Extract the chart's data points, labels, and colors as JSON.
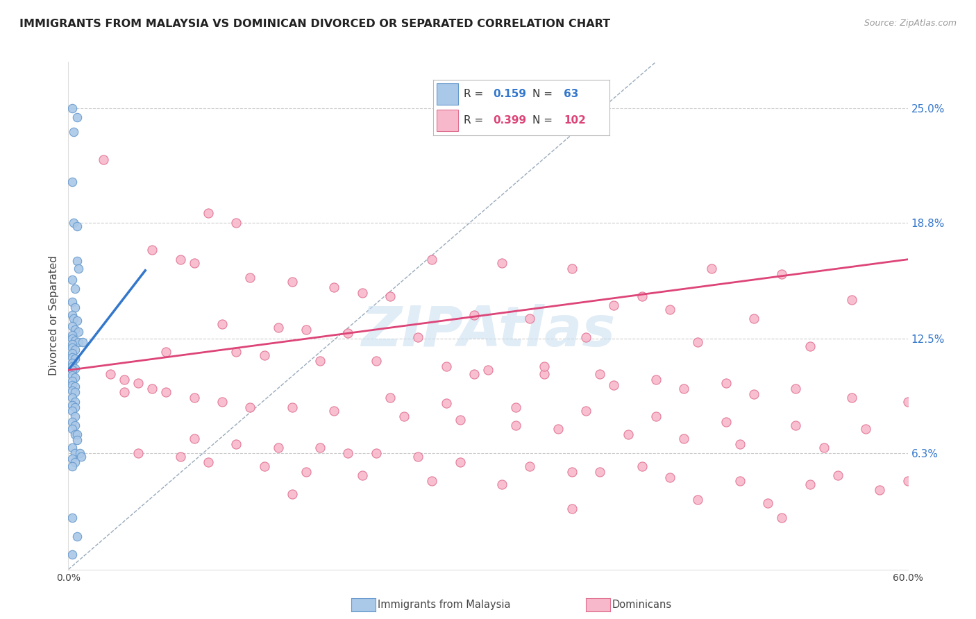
{
  "title": "IMMIGRANTS FROM MALAYSIA VS DOMINICAN DIVORCED OR SEPARATED CORRELATION CHART",
  "source": "Source: ZipAtlas.com",
  "ylabel": "Divorced or Separated",
  "ytick_labels": [
    "25.0%",
    "18.8%",
    "12.5%",
    "6.3%"
  ],
  "ytick_values": [
    0.25,
    0.188,
    0.125,
    0.063
  ],
  "xmin": 0.0,
  "xmax": 0.6,
  "ymin": 0.0,
  "ymax": 0.275,
  "blue_scatter": [
    [
      0.003,
      0.25
    ],
    [
      0.006,
      0.245
    ],
    [
      0.004,
      0.237
    ],
    [
      0.003,
      0.21
    ],
    [
      0.004,
      0.188
    ],
    [
      0.006,
      0.186
    ],
    [
      0.006,
      0.167
    ],
    [
      0.007,
      0.163
    ],
    [
      0.003,
      0.157
    ],
    [
      0.005,
      0.152
    ],
    [
      0.003,
      0.145
    ],
    [
      0.005,
      0.142
    ],
    [
      0.003,
      0.138
    ],
    [
      0.004,
      0.136
    ],
    [
      0.006,
      0.135
    ],
    [
      0.003,
      0.132
    ],
    [
      0.005,
      0.13
    ],
    [
      0.007,
      0.129
    ],
    [
      0.003,
      0.127
    ],
    [
      0.003,
      0.125
    ],
    [
      0.005,
      0.124
    ],
    [
      0.007,
      0.123
    ],
    [
      0.003,
      0.122
    ],
    [
      0.003,
      0.12
    ],
    [
      0.005,
      0.119
    ],
    [
      0.003,
      0.117
    ],
    [
      0.003,
      0.115
    ],
    [
      0.005,
      0.114
    ],
    [
      0.003,
      0.112
    ],
    [
      0.003,
      0.11
    ],
    [
      0.005,
      0.109
    ],
    [
      0.003,
      0.108
    ],
    [
      0.003,
      0.105
    ],
    [
      0.005,
      0.104
    ],
    [
      0.003,
      0.102
    ],
    [
      0.003,
      0.1
    ],
    [
      0.005,
      0.099
    ],
    [
      0.003,
      0.097
    ],
    [
      0.005,
      0.096
    ],
    [
      0.003,
      0.093
    ],
    [
      0.005,
      0.091
    ],
    [
      0.003,
      0.089
    ],
    [
      0.005,
      0.088
    ],
    [
      0.003,
      0.086
    ],
    [
      0.005,
      0.083
    ],
    [
      0.003,
      0.08
    ],
    [
      0.005,
      0.078
    ],
    [
      0.003,
      0.076
    ],
    [
      0.005,
      0.073
    ],
    [
      0.006,
      0.073
    ],
    [
      0.006,
      0.07
    ],
    [
      0.003,
      0.066
    ],
    [
      0.005,
      0.063
    ],
    [
      0.003,
      0.06
    ],
    [
      0.005,
      0.058
    ],
    [
      0.003,
      0.056
    ],
    [
      0.008,
      0.063
    ],
    [
      0.009,
      0.061
    ],
    [
      0.003,
      0.028
    ],
    [
      0.006,
      0.018
    ],
    [
      0.003,
      0.008
    ],
    [
      0.01,
      0.123
    ]
  ],
  "pink_scatter": [
    [
      0.025,
      0.222
    ],
    [
      0.1,
      0.193
    ],
    [
      0.12,
      0.188
    ],
    [
      0.06,
      0.173
    ],
    [
      0.08,
      0.168
    ],
    [
      0.09,
      0.166
    ],
    [
      0.26,
      0.168
    ],
    [
      0.31,
      0.166
    ],
    [
      0.36,
      0.163
    ],
    [
      0.46,
      0.163
    ],
    [
      0.51,
      0.16
    ],
    [
      0.13,
      0.158
    ],
    [
      0.16,
      0.156
    ],
    [
      0.19,
      0.153
    ],
    [
      0.21,
      0.15
    ],
    [
      0.23,
      0.148
    ],
    [
      0.41,
      0.148
    ],
    [
      0.56,
      0.146
    ],
    [
      0.39,
      0.143
    ],
    [
      0.43,
      0.141
    ],
    [
      0.29,
      0.138
    ],
    [
      0.33,
      0.136
    ],
    [
      0.49,
      0.136
    ],
    [
      0.11,
      0.133
    ],
    [
      0.15,
      0.131
    ],
    [
      0.17,
      0.13
    ],
    [
      0.2,
      0.128
    ],
    [
      0.25,
      0.126
    ],
    [
      0.37,
      0.126
    ],
    [
      0.45,
      0.123
    ],
    [
      0.53,
      0.121
    ],
    [
      0.07,
      0.118
    ],
    [
      0.12,
      0.118
    ],
    [
      0.14,
      0.116
    ],
    [
      0.18,
      0.113
    ],
    [
      0.22,
      0.113
    ],
    [
      0.27,
      0.11
    ],
    [
      0.3,
      0.108
    ],
    [
      0.34,
      0.106
    ],
    [
      0.38,
      0.106
    ],
    [
      0.42,
      0.103
    ],
    [
      0.47,
      0.101
    ],
    [
      0.52,
      0.098
    ],
    [
      0.04,
      0.096
    ],
    [
      0.09,
      0.093
    ],
    [
      0.11,
      0.091
    ],
    [
      0.13,
      0.088
    ],
    [
      0.16,
      0.088
    ],
    [
      0.19,
      0.086
    ],
    [
      0.24,
      0.083
    ],
    [
      0.28,
      0.081
    ],
    [
      0.32,
      0.078
    ],
    [
      0.35,
      0.076
    ],
    [
      0.4,
      0.073
    ],
    [
      0.44,
      0.071
    ],
    [
      0.48,
      0.068
    ],
    [
      0.54,
      0.066
    ],
    [
      0.05,
      0.063
    ],
    [
      0.08,
      0.061
    ],
    [
      0.1,
      0.058
    ],
    [
      0.14,
      0.056
    ],
    [
      0.17,
      0.053
    ],
    [
      0.21,
      0.051
    ],
    [
      0.26,
      0.048
    ],
    [
      0.31,
      0.046
    ],
    [
      0.36,
      0.053
    ],
    [
      0.41,
      0.056
    ],
    [
      0.03,
      0.106
    ],
    [
      0.04,
      0.103
    ],
    [
      0.05,
      0.101
    ],
    [
      0.06,
      0.098
    ],
    [
      0.07,
      0.096
    ],
    [
      0.15,
      0.066
    ],
    [
      0.2,
      0.063
    ],
    [
      0.29,
      0.106
    ],
    [
      0.34,
      0.11
    ],
    [
      0.39,
      0.1
    ],
    [
      0.44,
      0.098
    ],
    [
      0.49,
      0.095
    ],
    [
      0.23,
      0.093
    ],
    [
      0.27,
      0.09
    ],
    [
      0.32,
      0.088
    ],
    [
      0.37,
      0.086
    ],
    [
      0.42,
      0.083
    ],
    [
      0.47,
      0.08
    ],
    [
      0.52,
      0.078
    ],
    [
      0.57,
      0.076
    ],
    [
      0.09,
      0.071
    ],
    [
      0.12,
      0.068
    ],
    [
      0.18,
      0.066
    ],
    [
      0.22,
      0.063
    ],
    [
      0.25,
      0.061
    ],
    [
      0.28,
      0.058
    ],
    [
      0.33,
      0.056
    ],
    [
      0.38,
      0.053
    ],
    [
      0.43,
      0.05
    ],
    [
      0.48,
      0.048
    ],
    [
      0.53,
      0.046
    ],
    [
      0.58,
      0.043
    ],
    [
      0.16,
      0.041
    ],
    [
      0.45,
      0.038
    ],
    [
      0.5,
      0.036
    ],
    [
      0.55,
      0.051
    ],
    [
      0.6,
      0.048
    ],
    [
      0.56,
      0.093
    ],
    [
      0.6,
      0.091
    ],
    [
      0.36,
      0.033
    ],
    [
      0.51,
      0.028
    ]
  ],
  "blue_line_x": [
    0.0,
    0.055
  ],
  "blue_line_y": [
    0.108,
    0.162
  ],
  "pink_line_x": [
    0.0,
    0.6
  ],
  "pink_line_y": [
    0.108,
    0.168
  ],
  "dashed_line_x": [
    0.0,
    0.42
  ],
  "dashed_line_y": [
    0.0,
    0.275
  ],
  "blue_dot_color": "#aac8e8",
  "blue_edge_color": "#6699cc",
  "pink_dot_color": "#f8b8cc",
  "pink_edge_color": "#e07090",
  "blue_line_color": "#3377cc",
  "pink_line_color": "#dd4477",
  "dashed_color": "#99aabb",
  "watermark_text": "ZIPAtlas",
  "watermark_color": "#cce0f0",
  "legend_r1": "0.159",
  "legend_n1": "63",
  "legend_r2": "0.399",
  "legend_n2": "102",
  "legend_color1": "#3377cc",
  "legend_color2": "#dd4477",
  "legend_box1": "#aac8e8",
  "legend_box2": "#f8b8cc",
  "bottom_label1": "Immigrants from Malaysia",
  "bottom_label2": "Dominicans"
}
